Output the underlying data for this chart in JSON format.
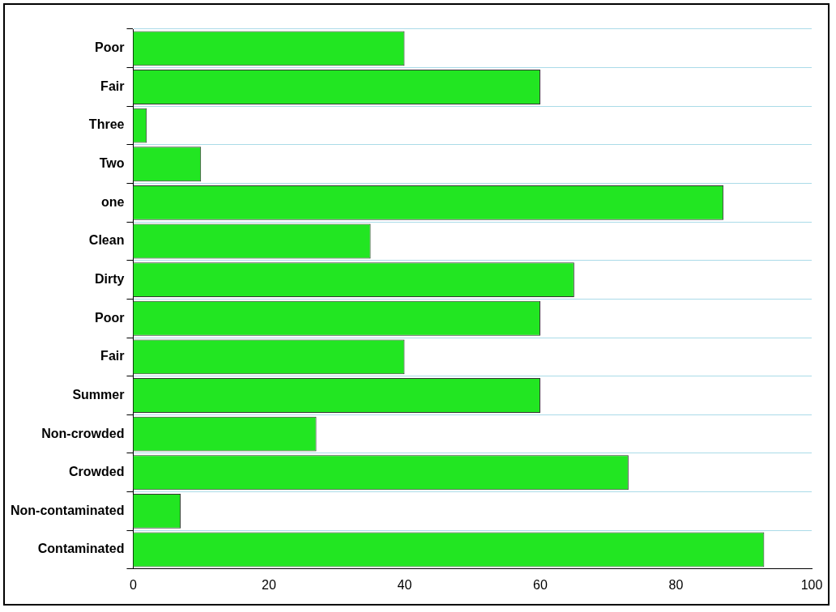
{
  "chart_data": {
    "type": "bar",
    "orientation": "horizontal",
    "categories": [
      "Poor",
      "Fair",
      "Three",
      "Two",
      "one",
      "Clean",
      "Dirty",
      "Poor",
      "Fair",
      "Summer",
      "Non-crowded",
      "Crowded",
      "Non-contaminated",
      "Contaminated"
    ],
    "values": [
      40,
      60,
      2,
      10,
      87,
      35,
      65,
      60,
      40,
      60,
      27,
      73,
      7,
      93
    ],
    "color": "#22e622",
    "xlim": [
      0,
      100
    ],
    "xticks": [
      0,
      20,
      40,
      60,
      80,
      100
    ],
    "grid": "y"
  }
}
